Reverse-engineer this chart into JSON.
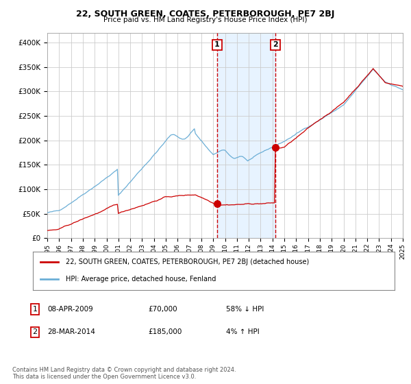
{
  "title": "22, SOUTH GREEN, COATES, PETERBOROUGH, PE7 2BJ",
  "subtitle": "Price paid vs. HM Land Registry's House Price Index (HPI)",
  "legend_line1": "22, SOUTH GREEN, COATES, PETERBOROUGH, PE7 2BJ (detached house)",
  "legend_line2": "HPI: Average price, detached house, Fenland",
  "transaction1_date": "08-APR-2009",
  "transaction1_price": 70000,
  "transaction1_label": "58% ↓ HPI",
  "transaction2_date": "28-MAR-2014",
  "transaction2_price": 185000,
  "transaction2_label": "4% ↑ HPI",
  "footnote": "Contains HM Land Registry data © Crown copyright and database right 2024.\nThis data is licensed under the Open Government Licence v3.0.",
  "hpi_color": "#6baed6",
  "price_color": "#cc0000",
  "bg_color": "#ffffff",
  "grid_color": "#cccccc",
  "shade_color": "#ddeeff",
  "x_start_year": 1995,
  "x_end_year": 2025,
  "ylim": [
    0,
    420000
  ]
}
